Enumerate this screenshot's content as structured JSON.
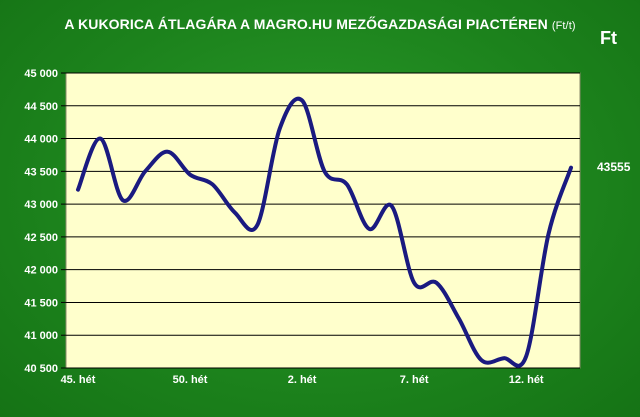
{
  "chart_data": {
    "type": "line",
    "title": "A KUKORICA ÁTLAGÁRA A MAGRO.HU MEZŐGAZDASÁGI PIACTÉREN",
    "title_unit": "(Ft/t)",
    "currency_label": "Ft",
    "last_value_label": "43555",
    "ylim": [
      40500,
      45000
    ],
    "yticks": [
      40500,
      41000,
      41500,
      42000,
      42500,
      43000,
      43500,
      44000,
      44500,
      45000
    ],
    "ytick_labels": [
      "40 500",
      "41 000",
      "41 500",
      "42 000",
      "42 500",
      "43 000",
      "43 500",
      "44 000",
      "44 500",
      "45 000"
    ],
    "xtick_labels": [
      {
        "index": 0,
        "label": "45. hét"
      },
      {
        "index": 5,
        "label": "50. hét"
      },
      {
        "index": 10,
        "label": "2. hét"
      },
      {
        "index": 15,
        "label": "7. hét"
      },
      {
        "index": 20,
        "label": "12. hét"
      }
    ],
    "grid": true,
    "series": [
      {
        "color": "#1a1a80",
        "values": [
          43220,
          44000,
          43060,
          43500,
          43800,
          43450,
          43300,
          42870,
          42680,
          44150,
          44580,
          43500,
          43300,
          42620,
          42970,
          41800,
          41800,
          41250,
          40620,
          40650,
          40680,
          42550,
          43555
        ]
      }
    ]
  },
  "colors": {
    "background": "#1c821c",
    "plot_area": "#ffffcc",
    "line": "#1a1a80",
    "text": "#ffffff"
  }
}
